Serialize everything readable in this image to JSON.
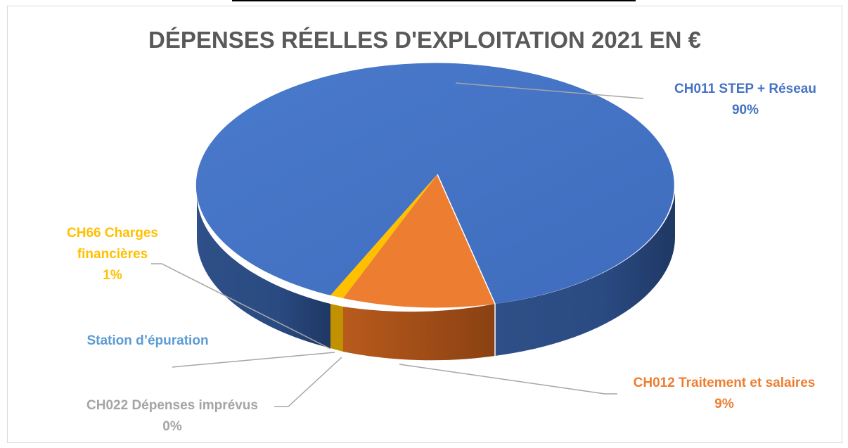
{
  "colors": {
    "ch011": "#4472c4",
    "ch012": "#ed7d31",
    "ch66": "#ffc000",
    "ch022": "#a5a5a5",
    "station": "#5b9bd5"
  },
  "chart_data": {
    "type": "pie",
    "title": "DÉPENSES RÉELLES D'EXPLOITATION 2021 EN €",
    "slices": [
      {
        "name": "CH011 STEP + Réseau",
        "value": 90,
        "label": "90%"
      },
      {
        "name": "CH012 Traitement et salaires",
        "value": 9,
        "label": "9%"
      },
      {
        "name": "CH022 Dépenses imprévus",
        "value": 0,
        "label": "0%"
      },
      {
        "name": "Station d’épuration",
        "value": 0,
        "label": ""
      },
      {
        "name": "CH66 Charges financières",
        "value": 1,
        "label": "1%"
      }
    ]
  }
}
